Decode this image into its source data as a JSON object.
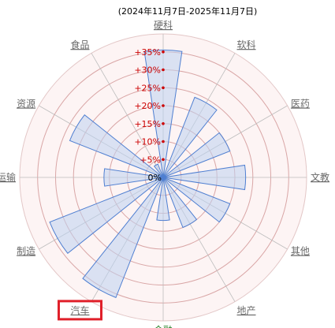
{
  "header": {
    "date_range": "(2024年11月7日-2025年11月7日)"
  },
  "colors": {
    "bar_fill": "#d7e3f6",
    "bar_stroke": "#4f7fd1",
    "ring_stroke": "#d9a6a6",
    "tick_label": "#cc0000",
    "selected_sector": "#1a7a1a",
    "highlight_box": "#e0202a"
  },
  "chart_data": {
    "type": "polar-bar",
    "radial_axis": {
      "range": [
        0,
        40
      ],
      "ticks": [
        0,
        5,
        10,
        15,
        20,
        25,
        30,
        35
      ],
      "tick_labels": [
        "0%",
        "+5%",
        "+10%",
        "+15%",
        "+20%",
        "+25%",
        "+30%",
        "+35%"
      ]
    },
    "categories": [
      "硬科",
      "软科",
      "医药",
      "文教",
      "其他",
      "地产",
      "金融",
      "汽车",
      "制造",
      "运输",
      "资源",
      "食品"
    ],
    "values": [
      35.5,
      24,
      20,
      23,
      20,
      15,
      12,
      36,
      34,
      16.5,
      28,
      4
    ],
    "selected_category": "金融",
    "highlighted_category": "汽车"
  }
}
